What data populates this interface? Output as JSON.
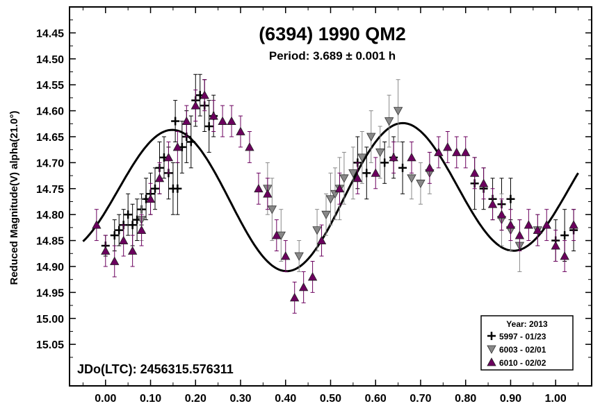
{
  "chart_data": {
    "type": "scatter",
    "title": "(6394) 1990 QM2",
    "subtitle": "Period: 3.689 ± 0.001 h",
    "xlabel": "",
    "ylabel": "Reduced Magnitude(V) alpha(21.0°)",
    "annotation": "JDo(LTC): 2456315.576311",
    "xlim": [
      -0.08,
      1.08
    ],
    "ylim": [
      14.4,
      15.13
    ],
    "y_inverted": true,
    "xticks": [
      "0.00",
      "0.10",
      "0.20",
      "0.30",
      "0.40",
      "0.50",
      "0.60",
      "0.70",
      "0.80",
      "0.90",
      "1.00"
    ],
    "yticks": [
      "14.45",
      "14.50",
      "14.55",
      "14.60",
      "14.65",
      "14.70",
      "14.75",
      "14.80",
      "14.85",
      "14.90",
      "14.95",
      "15.00",
      "15.05"
    ],
    "legend": {
      "title": "Year: 2013",
      "position": "bottom-right",
      "entries": [
        "5997 - 01/23",
        "6003 - 02/01",
        "6010 - 02/02"
      ]
    },
    "series": [
      {
        "name": "5997 - 01/23",
        "marker": "plus",
        "color": "#000000",
        "points": [
          [
            0.0,
            14.86,
            0.02
          ],
          [
            0.02,
            14.84,
            0.03
          ],
          [
            0.03,
            14.83,
            0.03
          ],
          [
            0.04,
            14.82,
            0.03
          ],
          [
            0.05,
            14.8,
            0.04
          ],
          [
            0.06,
            14.82,
            0.04
          ],
          [
            0.07,
            14.81,
            0.04
          ],
          [
            0.08,
            14.79,
            0.03
          ],
          [
            0.09,
            14.77,
            0.04
          ],
          [
            0.1,
            14.76,
            0.04
          ],
          [
            0.11,
            14.75,
            0.04
          ],
          [
            0.12,
            14.71,
            0.05
          ],
          [
            0.13,
            14.69,
            0.04
          ],
          [
            0.14,
            14.72,
            0.05
          ],
          [
            0.15,
            14.75,
            0.05
          ],
          [
            0.155,
            14.62,
            0.04
          ],
          [
            0.16,
            14.75,
            0.05
          ],
          [
            0.17,
            14.67,
            0.05
          ],
          [
            0.18,
            14.65,
            0.05
          ],
          [
            0.19,
            14.66,
            0.05
          ],
          [
            0.2,
            14.58,
            0.05
          ],
          [
            0.21,
            14.57,
            0.04
          ],
          [
            0.22,
            14.59,
            0.05
          ],
          [
            0.23,
            14.63,
            0.05
          ],
          [
            0.24,
            14.61,
            0.04
          ],
          [
            0.56,
            14.7,
            0.05
          ],
          [
            0.58,
            14.72,
            0.05
          ],
          [
            0.62,
            14.7,
            0.04
          ],
          [
            0.64,
            14.69,
            0.04
          ],
          [
            0.66,
            14.71,
            0.05
          ],
          [
            0.82,
            14.74,
            0.05
          ],
          [
            0.84,
            14.75,
            0.04
          ],
          [
            0.86,
            14.77,
            0.04
          ],
          [
            0.88,
            14.78,
            0.05
          ],
          [
            0.9,
            14.77,
            0.04
          ],
          [
            1.0,
            14.85,
            0.04
          ],
          [
            1.02,
            14.84,
            0.05
          ],
          [
            1.04,
            14.83,
            0.04
          ]
        ]
      },
      {
        "name": "6003 - 02/01",
        "marker": "triangle-down",
        "color": "#888888",
        "points": [
          [
            0.08,
            14.81,
            0.04
          ],
          [
            0.36,
            14.75,
            0.05
          ],
          [
            0.37,
            14.79,
            0.06
          ],
          [
            0.39,
            14.84,
            0.05
          ],
          [
            0.43,
            14.88,
            0.03
          ],
          [
            0.47,
            14.83,
            0.04
          ],
          [
            0.49,
            14.8,
            0.04
          ],
          [
            0.5,
            14.77,
            0.05
          ],
          [
            0.51,
            14.76,
            0.05
          ],
          [
            0.52,
            14.75,
            0.06
          ],
          [
            0.53,
            14.73,
            0.05
          ],
          [
            0.55,
            14.72,
            0.05
          ],
          [
            0.57,
            14.69,
            0.05
          ],
          [
            0.59,
            14.65,
            0.05
          ],
          [
            0.61,
            14.68,
            0.05
          ],
          [
            0.63,
            14.62,
            0.05
          ],
          [
            0.65,
            14.6,
            0.06
          ],
          [
            0.68,
            14.73,
            0.04
          ],
          [
            0.7,
            14.74,
            0.04
          ],
          [
            0.72,
            14.72,
            0.04
          ],
          [
            0.88,
            14.81,
            0.05
          ],
          [
            0.9,
            14.83,
            0.04
          ],
          [
            0.92,
            14.86,
            0.05
          ],
          [
            0.96,
            14.83,
            0.03
          ]
        ]
      },
      {
        "name": "6010 - 02/02",
        "marker": "triangle-up",
        "color": "#6b005e",
        "points": [
          [
            -0.02,
            14.82,
            0.03
          ],
          [
            0.0,
            14.87,
            0.03
          ],
          [
            0.02,
            14.89,
            0.03
          ],
          [
            0.04,
            14.85,
            0.03
          ],
          [
            0.06,
            14.87,
            0.03
          ],
          [
            0.08,
            14.83,
            0.03
          ],
          [
            0.1,
            14.77,
            0.03
          ],
          [
            0.12,
            14.73,
            0.03
          ],
          [
            0.14,
            14.69,
            0.03
          ],
          [
            0.16,
            14.67,
            0.03
          ],
          [
            0.18,
            14.62,
            0.03
          ],
          [
            0.2,
            14.59,
            0.03
          ],
          [
            0.22,
            14.57,
            0.03
          ],
          [
            0.24,
            14.61,
            0.03
          ],
          [
            0.26,
            14.62,
            0.03
          ],
          [
            0.28,
            14.62,
            0.03
          ],
          [
            0.3,
            14.64,
            0.03
          ],
          [
            0.32,
            14.67,
            0.03
          ],
          [
            0.34,
            14.75,
            0.03
          ],
          [
            0.36,
            14.76,
            0.03
          ],
          [
            0.38,
            14.84,
            0.03
          ],
          [
            0.4,
            14.88,
            0.03
          ],
          [
            0.42,
            14.96,
            0.03
          ],
          [
            0.44,
            14.94,
            0.03
          ],
          [
            0.46,
            14.92,
            0.03
          ],
          [
            0.48,
            14.85,
            0.03
          ],
          [
            0.52,
            14.75,
            0.03
          ],
          [
            0.56,
            14.73,
            0.03
          ],
          [
            0.6,
            14.72,
            0.03
          ],
          [
            0.64,
            14.69,
            0.03
          ],
          [
            0.68,
            14.69,
            0.03
          ],
          [
            0.72,
            14.71,
            0.03
          ],
          [
            0.74,
            14.68,
            0.03
          ],
          [
            0.76,
            14.67,
            0.03
          ],
          [
            0.78,
            14.68,
            0.03
          ],
          [
            0.8,
            14.68,
            0.03
          ],
          [
            0.82,
            14.72,
            0.03
          ],
          [
            0.84,
            14.74,
            0.03
          ],
          [
            0.86,
            14.78,
            0.03
          ],
          [
            0.88,
            14.8,
            0.03
          ],
          [
            0.9,
            14.82,
            0.03
          ],
          [
            0.92,
            14.84,
            0.03
          ],
          [
            0.94,
            14.82,
            0.03
          ],
          [
            0.96,
            14.83,
            0.03
          ],
          [
            0.98,
            14.82,
            0.03
          ],
          [
            1.0,
            14.86,
            0.03
          ],
          [
            1.02,
            14.88,
            0.03
          ],
          [
            1.04,
            14.82,
            0.03
          ]
        ]
      }
    ],
    "fit_curve": {
      "mean": 14.76,
      "terms": [
        {
          "a": -0.0125,
          "b": 0.0165,
          "k": 1
        },
        {
          "a": 0.0465,
          "b": -0.1207,
          "k": 2
        }
      ]
    }
  }
}
